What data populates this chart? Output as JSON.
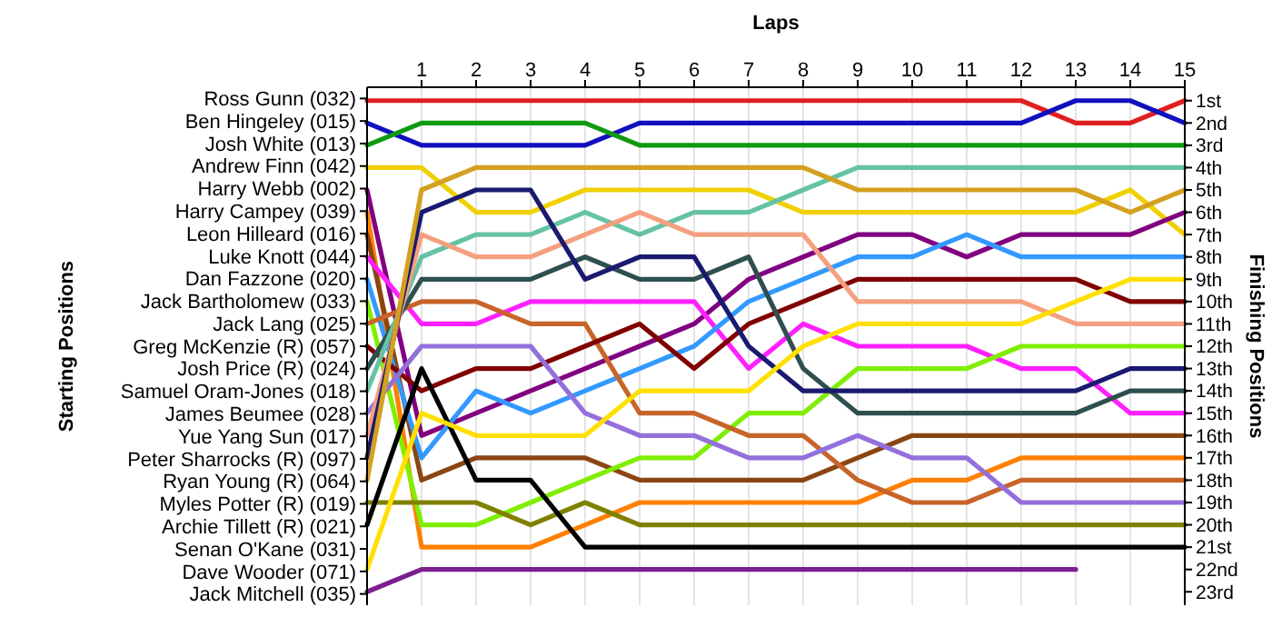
{
  "chart_data": {
    "type": "line",
    "xlabel": "Laps",
    "annotations": [
      "Starting Positions"
    ],
    "y2label": "Finishing Positions",
    "x": [
      0,
      1,
      2,
      3,
      4,
      5,
      6,
      7,
      8,
      9,
      10,
      11,
      12,
      13,
      14,
      15
    ],
    "xlim": [
      0,
      15
    ],
    "xticks": [
      1,
      2,
      3,
      4,
      5,
      6,
      7,
      8,
      9,
      10,
      11,
      12,
      13,
      14,
      15
    ],
    "y_categories": [
      "Ross Gunn (032)",
      "Ben Hingeley (015)",
      "Josh White (013)",
      "Andrew Finn (042)",
      "Harry Webb (002)",
      "Harry Campey (039)",
      "Leon Hilleard (016)",
      "Luke Knott (044)",
      "Dan Fazzone (020)",
      "Jack Bartholomew (033)",
      "Jack Lang (025)",
      "Greg McKenzie (R) (057)",
      "Josh Price (R) (024)",
      "Samuel Oram-Jones (018)",
      "James Beumee (028)",
      "Yue Yang Sun (017)",
      "Peter Sharrocks (R) (097)",
      "Ryan Young (R) (064)",
      "Myles Potter (R) (019)",
      "Archie Tillett (R) (021)",
      "Senan O'Kane (031)",
      "Dave Wooder (071)",
      "Jack Mitchell (035)"
    ],
    "y2lim": [
      23.6,
      0.4
    ],
    "y2ticks": [
      {
        "value": 1,
        "label": "1st"
      },
      {
        "value": 2,
        "label": "2nd"
      },
      {
        "value": 3,
        "label": "3rd"
      },
      {
        "value": 4,
        "label": "4th"
      },
      {
        "value": 5,
        "label": "5th"
      },
      {
        "value": 6,
        "label": "6th"
      },
      {
        "value": 7,
        "label": "7th"
      },
      {
        "value": 8,
        "label": "8th"
      },
      {
        "value": 9,
        "label": "9th"
      },
      {
        "value": 10,
        "label": "10th"
      },
      {
        "value": 11,
        "label": "11th"
      },
      {
        "value": 12,
        "label": "12th"
      },
      {
        "value": 13,
        "label": "13th"
      },
      {
        "value": 14,
        "label": "14th"
      },
      {
        "value": 15,
        "label": "15th"
      },
      {
        "value": 16,
        "label": "16th"
      },
      {
        "value": 17,
        "label": "17th"
      },
      {
        "value": 18,
        "label": "18th"
      },
      {
        "value": 19,
        "label": "19th"
      },
      {
        "value": 20,
        "label": "20th"
      },
      {
        "value": 21,
        "label": "21st"
      },
      {
        "value": 22,
        "label": "22nd"
      },
      {
        "value": 23,
        "label": "23rd"
      }
    ],
    "grid": "x",
    "marker": "none",
    "line_style": "solid",
    "series": [
      {
        "axis": "y2",
        "color": "#e02020",
        "values": [
          1,
          1,
          1,
          1,
          1,
          1,
          1,
          1,
          1,
          1,
          1,
          1,
          1,
          2,
          2,
          1
        ]
      },
      {
        "axis": "y2",
        "color": "#1010c0",
        "values": [
          2,
          3,
          3,
          3,
          3,
          2,
          2,
          2,
          2,
          2,
          2,
          2,
          2,
          1,
          1,
          2
        ]
      },
      {
        "axis": "y2",
        "color": "#109a10",
        "values": [
          3,
          2,
          2,
          2,
          2,
          3,
          3,
          3,
          3,
          3,
          3,
          3,
          3,
          3,
          3,
          3
        ]
      },
      {
        "axis": "y2",
        "color": "#f0d000",
        "values": [
          4,
          4,
          6,
          6,
          5,
          5,
          5,
          5,
          6,
          6,
          6,
          6,
          6,
          6,
          5,
          7
        ]
      },
      {
        "axis": "y2",
        "color": "#800080",
        "values": [
          5,
          16,
          15,
          14,
          13,
          12,
          11,
          9,
          8,
          7,
          7,
          8,
          7,
          7,
          7,
          6
        ]
      },
      {
        "axis": "y2",
        "color": "#ff8000",
        "values": [
          6,
          21,
          21,
          21,
          20,
          19,
          19,
          19,
          19,
          19,
          18,
          18,
          17,
          17,
          17,
          17
        ]
      },
      {
        "axis": "y2",
        "color": "#8b4513",
        "values": [
          7,
          18,
          17,
          17,
          17,
          18,
          18,
          18,
          18,
          17,
          16,
          16,
          16,
          16,
          16,
          16
        ]
      },
      {
        "axis": "y2",
        "color": "#ff20ff",
        "values": [
          8,
          11,
          11,
          10,
          10,
          10,
          10,
          13,
          11,
          12,
          12,
          12,
          13,
          13,
          15,
          15
        ]
      },
      {
        "axis": "y2",
        "color": "#3399ff",
        "values": [
          9,
          17,
          14,
          15,
          14,
          13,
          12,
          10,
          9,
          8,
          8,
          7,
          8,
          8,
          8,
          8
        ]
      },
      {
        "axis": "y2",
        "color": "#80ee00",
        "values": [
          10,
          20,
          20,
          19,
          18,
          17,
          17,
          15,
          15,
          13,
          13,
          13,
          12,
          12,
          12,
          12
        ]
      },
      {
        "axis": "y2",
        "color": "#c8642a",
        "values": [
          11,
          10,
          10,
          11,
          11,
          15,
          15,
          16,
          16,
          18,
          19,
          19,
          18,
          18,
          18,
          18
        ]
      },
      {
        "axis": "y2",
        "color": "#800000",
        "values": [
          12,
          14,
          13,
          13,
          12,
          11,
          13,
          11,
          10,
          9,
          9,
          9,
          9,
          9,
          10,
          10
        ]
      },
      {
        "axis": "y2",
        "color": "#2f4f4f",
        "values": [
          13,
          9,
          9,
          9,
          8,
          9,
          9,
          8,
          13,
          15,
          15,
          15,
          15,
          15,
          14,
          14
        ]
      },
      {
        "axis": "y2",
        "color": "#66c2a5",
        "values": [
          14,
          8,
          7,
          7,
          6,
          7,
          6,
          6,
          5,
          4,
          4,
          4,
          4,
          4,
          4,
          4
        ]
      },
      {
        "axis": "y2",
        "color": "#9370db",
        "values": [
          15,
          12,
          12,
          12,
          15,
          16,
          16,
          17,
          17,
          16,
          17,
          17,
          19,
          19,
          19,
          19
        ]
      },
      {
        "axis": "y2",
        "color": "#f4a080",
        "values": [
          16,
          7,
          8,
          8,
          7,
          6,
          7,
          7,
          7,
          10,
          10,
          10,
          10,
          11,
          11,
          11
        ]
      },
      {
        "axis": "y2",
        "color": "#1a1a70",
        "values": [
          17,
          6,
          5,
          5,
          9,
          8,
          8,
          12,
          14,
          14,
          14,
          14,
          14,
          14,
          13,
          13
        ]
      },
      {
        "axis": "y2",
        "color": "#d4a020",
        "values": [
          18,
          5,
          4,
          4,
          4,
          4,
          4,
          4,
          4,
          5,
          5,
          5,
          5,
          5,
          6,
          5
        ]
      },
      {
        "axis": "y2",
        "color": "#808000",
        "values": [
          19,
          19,
          19,
          20,
          19,
          20,
          20,
          20,
          20,
          20,
          20,
          20,
          20,
          20,
          20,
          20
        ]
      },
      {
        "axis": "y2",
        "color": "#000000",
        "values": [
          20,
          13,
          18,
          18,
          21,
          21,
          21,
          21,
          21,
          21,
          21,
          21,
          21,
          21,
          21,
          21
        ]
      },
      {
        "axis": "y2",
        "color": "#ffe000",
        "values": [
          22,
          15,
          16,
          16,
          16,
          14,
          14,
          14,
          12,
          11,
          11,
          11,
          11,
          10,
          9,
          9
        ]
      },
      {
        "axis": "y2",
        "color": "#7b1f8f",
        "values": [
          23,
          22,
          22,
          22,
          22,
          22,
          22,
          22,
          22,
          22,
          22,
          22,
          22,
          22,
          null,
          null
        ]
      }
    ]
  }
}
